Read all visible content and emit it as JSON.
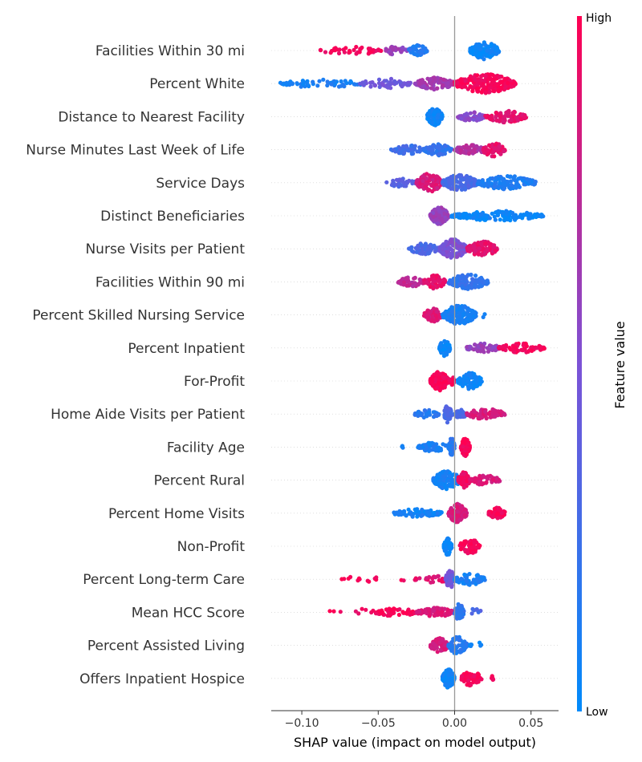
{
  "chart_data": {
    "type": "scatter",
    "subtype": "shap-beeswarm",
    "xlabel": "SHAP value (impact on model output)",
    "xlim": [
      -0.12,
      0.068
    ],
    "x_ticks": [
      -0.1,
      -0.05,
      0.0,
      0.05
    ],
    "x_tick_labels": [
      "−0.10",
      "−0.05",
      "0.00",
      "0.05"
    ],
    "colorbar": {
      "title": "Feature value",
      "high_label": "High",
      "low_label": "Low",
      "low_color": "#008bfb",
      "mid_color": "#7c52d6",
      "high_color": "#ff0052"
    },
    "features": [
      {
        "name": "Facilities Within 30 mi",
        "clusters": [
          {
            "lo": -0.088,
            "hi": -0.048,
            "value": 0.95,
            "count": 45,
            "spread": 0.6
          },
          {
            "lo": -0.047,
            "hi": -0.03,
            "value": 0.6,
            "count": 30,
            "spread": 0.5
          },
          {
            "lo": -0.03,
            "hi": -0.018,
            "value": 0.15,
            "count": 60,
            "spread": 0.9
          },
          {
            "lo": 0.01,
            "hi": 0.029,
            "value": 0.05,
            "count": 120,
            "spread": 1.8
          }
        ]
      },
      {
        "name": "Percent White",
        "clusters": [
          {
            "lo": -0.114,
            "hi": -0.06,
            "value": 0.1,
            "count": 55,
            "spread": 0.5
          },
          {
            "lo": -0.062,
            "hi": -0.028,
            "value": 0.45,
            "count": 60,
            "spread": 0.7
          },
          {
            "lo": -0.026,
            "hi": 0.0,
            "value": 0.65,
            "count": 90,
            "spread": 1.0
          },
          {
            "lo": 0.0,
            "hi": 0.04,
            "value": 0.97,
            "count": 220,
            "spread": 2.0
          }
        ]
      },
      {
        "name": "Distance to Nearest Facility",
        "clusters": [
          {
            "lo": -0.018,
            "hi": -0.008,
            "value": 0.05,
            "count": 90,
            "spread": 1.8
          },
          {
            "lo": 0.002,
            "hi": 0.02,
            "value": 0.55,
            "count": 60,
            "spread": 0.6
          },
          {
            "lo": 0.02,
            "hi": 0.047,
            "value": 0.9,
            "count": 90,
            "spread": 1.0
          }
        ]
      },
      {
        "name": "Nurse Minutes Last Week of Life",
        "clusters": [
          {
            "lo": -0.042,
            "hi": -0.02,
            "value": 0.25,
            "count": 50,
            "spread": 0.6
          },
          {
            "lo": -0.02,
            "hi": -0.002,
            "value": 0.2,
            "count": 80,
            "spread": 1.0
          },
          {
            "lo": 0.0,
            "hi": 0.02,
            "value": 0.7,
            "count": 80,
            "spread": 0.7
          },
          {
            "lo": 0.018,
            "hi": 0.033,
            "value": 0.9,
            "count": 70,
            "spread": 1.2
          }
        ]
      },
      {
        "name": "Service Days",
        "clusters": [
          {
            "lo": -0.045,
            "hi": -0.025,
            "value": 0.35,
            "count": 30,
            "spread": 0.5
          },
          {
            "lo": -0.025,
            "hi": -0.008,
            "value": 0.85,
            "count": 110,
            "spread": 1.9
          },
          {
            "lo": -0.008,
            "hi": 0.015,
            "value": 0.3,
            "count": 140,
            "spread": 1.6
          },
          {
            "lo": 0.015,
            "hi": 0.053,
            "value": 0.12,
            "count": 130,
            "spread": 1.3
          }
        ]
      },
      {
        "name": "Distinct Beneficiaries",
        "clusters": [
          {
            "lo": -0.016,
            "hi": -0.004,
            "value": 0.6,
            "count": 110,
            "spread": 1.8
          },
          {
            "lo": -0.002,
            "hi": 0.058,
            "value": 0.05,
            "count": 160,
            "spread": 0.7
          }
        ]
      },
      {
        "name": "Nurse Visits per Patient",
        "clusters": [
          {
            "lo": -0.03,
            "hi": -0.01,
            "value": 0.3,
            "count": 60,
            "spread": 0.9
          },
          {
            "lo": -0.01,
            "hi": 0.008,
            "value": 0.5,
            "count": 160,
            "spread": 2.0
          },
          {
            "lo": 0.008,
            "hi": 0.028,
            "value": 0.9,
            "count": 110,
            "spread": 1.5
          }
        ]
      },
      {
        "name": "Facilities Within 90 mi",
        "clusters": [
          {
            "lo": -0.037,
            "hi": -0.02,
            "value": 0.75,
            "count": 50,
            "spread": 0.7
          },
          {
            "lo": -0.02,
            "hi": -0.006,
            "value": 0.9,
            "count": 80,
            "spread": 1.3
          },
          {
            "lo": -0.004,
            "hi": 0.022,
            "value": 0.2,
            "count": 120,
            "spread": 1.4
          }
        ]
      },
      {
        "name": "Percent Skilled Nursing Service",
        "clusters": [
          {
            "lo": -0.02,
            "hi": -0.008,
            "value": 0.85,
            "count": 60,
            "spread": 1.2
          },
          {
            "lo": -0.008,
            "hi": 0.014,
            "value": 0.1,
            "count": 170,
            "spread": 2.0
          },
          {
            "lo": 0.018,
            "hi": 0.02,
            "value": 0.05,
            "count": 2,
            "spread": 0.1
          }
        ]
      },
      {
        "name": "Percent Inpatient",
        "clusters": [
          {
            "lo": -0.01,
            "hi": -0.003,
            "value": 0.05,
            "count": 60,
            "spread": 1.6
          },
          {
            "lo": 0.008,
            "hi": 0.03,
            "value": 0.6,
            "count": 60,
            "spread": 0.6
          },
          {
            "lo": 0.028,
            "hi": 0.059,
            "value": 0.97,
            "count": 70,
            "spread": 0.6
          }
        ]
      },
      {
        "name": "For-Profit",
        "clusters": [
          {
            "lo": -0.016,
            "hi": -0.004,
            "value": 0.97,
            "count": 140,
            "spread": 2.0
          },
          {
            "lo": -0.004,
            "hi": 0.0,
            "value": 0.95,
            "count": 10,
            "spread": 0.8
          },
          {
            "lo": 0.002,
            "hi": 0.018,
            "value": 0.05,
            "count": 110,
            "spread": 1.6
          }
        ]
      },
      {
        "name": "Home Aide Visits per Patient",
        "clusters": [
          {
            "lo": -0.026,
            "hi": -0.01,
            "value": 0.15,
            "count": 40,
            "spread": 0.5
          },
          {
            "lo": -0.007,
            "hi": -0.002,
            "value": 0.3,
            "count": 60,
            "spread": 1.8
          },
          {
            "lo": 0.0,
            "hi": 0.008,
            "value": 0.3,
            "count": 40,
            "spread": 0.6
          },
          {
            "lo": 0.008,
            "hi": 0.033,
            "value": 0.85,
            "count": 70,
            "spread": 0.9
          }
        ]
      },
      {
        "name": "Facility Age",
        "clusters": [
          {
            "lo": -0.035,
            "hi": -0.033,
            "value": 0.05,
            "count": 3,
            "spread": 0.3
          },
          {
            "lo": -0.024,
            "hi": -0.004,
            "value": 0.1,
            "count": 50,
            "spread": 0.6
          },
          {
            "lo": -0.004,
            "hi": 0.0,
            "value": 0.15,
            "count": 50,
            "spread": 1.8
          },
          {
            "lo": 0.004,
            "hi": 0.01,
            "value": 0.97,
            "count": 70,
            "spread": 1.8
          }
        ]
      },
      {
        "name": "Percent Rural",
        "clusters": [
          {
            "lo": -0.014,
            "hi": 0.004,
            "value": 0.08,
            "count": 160,
            "spread": 1.9
          },
          {
            "lo": 0.002,
            "hi": 0.01,
            "value": 0.95,
            "count": 70,
            "spread": 1.6
          },
          {
            "lo": 0.01,
            "hi": 0.03,
            "value": 0.85,
            "count": 60,
            "spread": 0.7
          }
        ]
      },
      {
        "name": "Percent Home Visits",
        "clusters": [
          {
            "lo": -0.04,
            "hi": -0.008,
            "value": 0.08,
            "count": 80,
            "spread": 0.5
          },
          {
            "lo": -0.004,
            "hi": 0.008,
            "value": 0.85,
            "count": 100,
            "spread": 2.0
          },
          {
            "lo": 0.022,
            "hi": 0.033,
            "value": 0.97,
            "count": 50,
            "spread": 0.9
          }
        ]
      },
      {
        "name": "Non-Profit",
        "clusters": [
          {
            "lo": -0.007,
            "hi": -0.002,
            "value": 0.05,
            "count": 70,
            "spread": 1.8
          },
          {
            "lo": 0.003,
            "hi": 0.017,
            "value": 0.97,
            "count": 60,
            "spread": 1.4
          }
        ]
      },
      {
        "name": "Percent Long-term Care",
        "clusters": [
          {
            "lo": -0.074,
            "hi": -0.062,
            "value": 0.97,
            "count": 8,
            "spread": 0.4
          },
          {
            "lo": -0.058,
            "hi": -0.05,
            "value": 0.95,
            "count": 5,
            "spread": 0.3
          },
          {
            "lo": -0.036,
            "hi": -0.03,
            "value": 0.97,
            "count": 2,
            "spread": 0.2
          },
          {
            "lo": -0.026,
            "hi": -0.004,
            "value": 0.9,
            "count": 30,
            "spread": 0.4
          },
          {
            "lo": -0.006,
            "hi": 0.0,
            "value": 0.45,
            "count": 60,
            "spread": 1.8
          },
          {
            "lo": 0.0,
            "hi": 0.02,
            "value": 0.1,
            "count": 60,
            "spread": 0.9
          }
        ]
      },
      {
        "name": "Mean HCC Score",
        "clusters": [
          {
            "lo": -0.084,
            "hi": -0.074,
            "value": 0.97,
            "count": 3,
            "spread": 0.3
          },
          {
            "lo": -0.065,
            "hi": -0.052,
            "value": 0.95,
            "count": 6,
            "spread": 0.4
          },
          {
            "lo": -0.052,
            "hi": -0.025,
            "value": 0.97,
            "count": 50,
            "spread": 0.5
          },
          {
            "lo": -0.025,
            "hi": 0.0,
            "value": 0.85,
            "count": 90,
            "spread": 0.6
          },
          {
            "lo": 0.0,
            "hi": 0.006,
            "value": 0.2,
            "count": 60,
            "spread": 1.8
          },
          {
            "lo": 0.008,
            "hi": 0.018,
            "value": 0.3,
            "count": 8,
            "spread": 0.3
          }
        ]
      },
      {
        "name": "Percent Assisted Living",
        "clusters": [
          {
            "lo": -0.016,
            "hi": -0.004,
            "value": 0.85,
            "count": 70,
            "spread": 1.4
          },
          {
            "lo": -0.004,
            "hi": 0.008,
            "value": 0.15,
            "count": 80,
            "spread": 1.8
          },
          {
            "lo": 0.01,
            "hi": 0.018,
            "value": 0.05,
            "count": 8,
            "spread": 0.5
          }
        ]
      },
      {
        "name": "Offers Inpatient Hospice",
        "clusters": [
          {
            "lo": -0.008,
            "hi": 0.0,
            "value": 0.05,
            "count": 110,
            "spread": 2.0
          },
          {
            "lo": 0.004,
            "hi": 0.018,
            "value": 0.97,
            "count": 70,
            "spread": 1.5
          },
          {
            "lo": 0.024,
            "hi": 0.026,
            "value": 0.97,
            "count": 6,
            "spread": 0.4
          }
        ]
      }
    ]
  }
}
